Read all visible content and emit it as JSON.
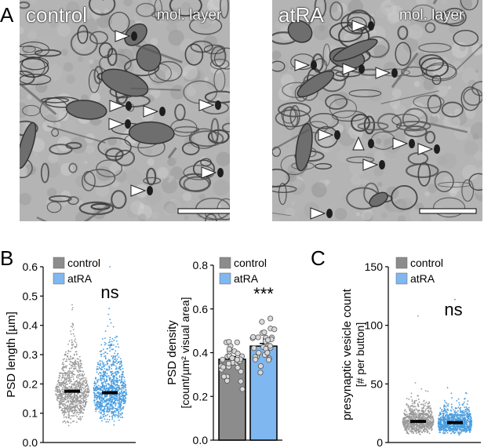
{
  "panels": {
    "A": {
      "letter": "A",
      "left": {
        "label": "control",
        "layer": "mol. layer"
      },
      "right": {
        "label": "atRA",
        "layer": "mol. layer"
      }
    },
    "B": {
      "letter": "B"
    },
    "C": {
      "letter": "C"
    }
  },
  "colors": {
    "control": "#8c8c8c",
    "atRA": "#7fb7f0",
    "atRA_dots": "#4a9ee0",
    "control_dots": "#9a9a9a",
    "em_bg": "#b4b4b4"
  },
  "icons": [
    "triangle-arrowhead-icon",
    "scale-bar"
  ],
  "chart_data": [
    {
      "type": "scatter",
      "id": "psd-length",
      "ylabel": "PSD length [µm]",
      "ylim": [
        0,
        0.6
      ],
      "yticks": [
        "0.0",
        "0.1",
        "0.2",
        "0.3",
        "0.4",
        "0.5",
        "0.6"
      ],
      "legend": [
        {
          "name": "control"
        },
        {
          "name": "atRA"
        }
      ],
      "groups": [
        {
          "name": "control",
          "median": 0.175,
          "max": 0.47,
          "min": 0.05
        },
        {
          "name": "atRA",
          "median": 0.17,
          "max": 0.6,
          "min": 0.06
        }
      ],
      "annotation": "ns"
    },
    {
      "type": "bar",
      "id": "psd-density",
      "ylabel": "PSD density",
      "ylabel2": "[count/µm² visual area]",
      "ylim": [
        0,
        0.8
      ],
      "yticks": [
        "0.0",
        "0.2",
        "0.4",
        "0.6",
        "0.8"
      ],
      "legend": [
        {
          "name": "control"
        },
        {
          "name": "atRA"
        }
      ],
      "categories": [
        "control",
        "atRA"
      ],
      "values": [
        0.37,
        0.43
      ],
      "errors": [
        0.012,
        0.012
      ],
      "annotation": "***"
    },
    {
      "type": "scatter",
      "id": "vesicle-count",
      "ylabel": "presynaptic vesicle count",
      "ylabel2": "[# per button]",
      "ylim": [
        0,
        150
      ],
      "yticks": [
        "0",
        "50",
        "100",
        "150"
      ],
      "legend": [
        {
          "name": "control"
        },
        {
          "name": "atRA"
        }
      ],
      "groups": [
        {
          "name": "control",
          "median": 18,
          "max": 108,
          "min": 2
        },
        {
          "name": "atRA",
          "median": 17,
          "max": 122,
          "min": 1
        }
      ],
      "annotation": "ns"
    }
  ]
}
